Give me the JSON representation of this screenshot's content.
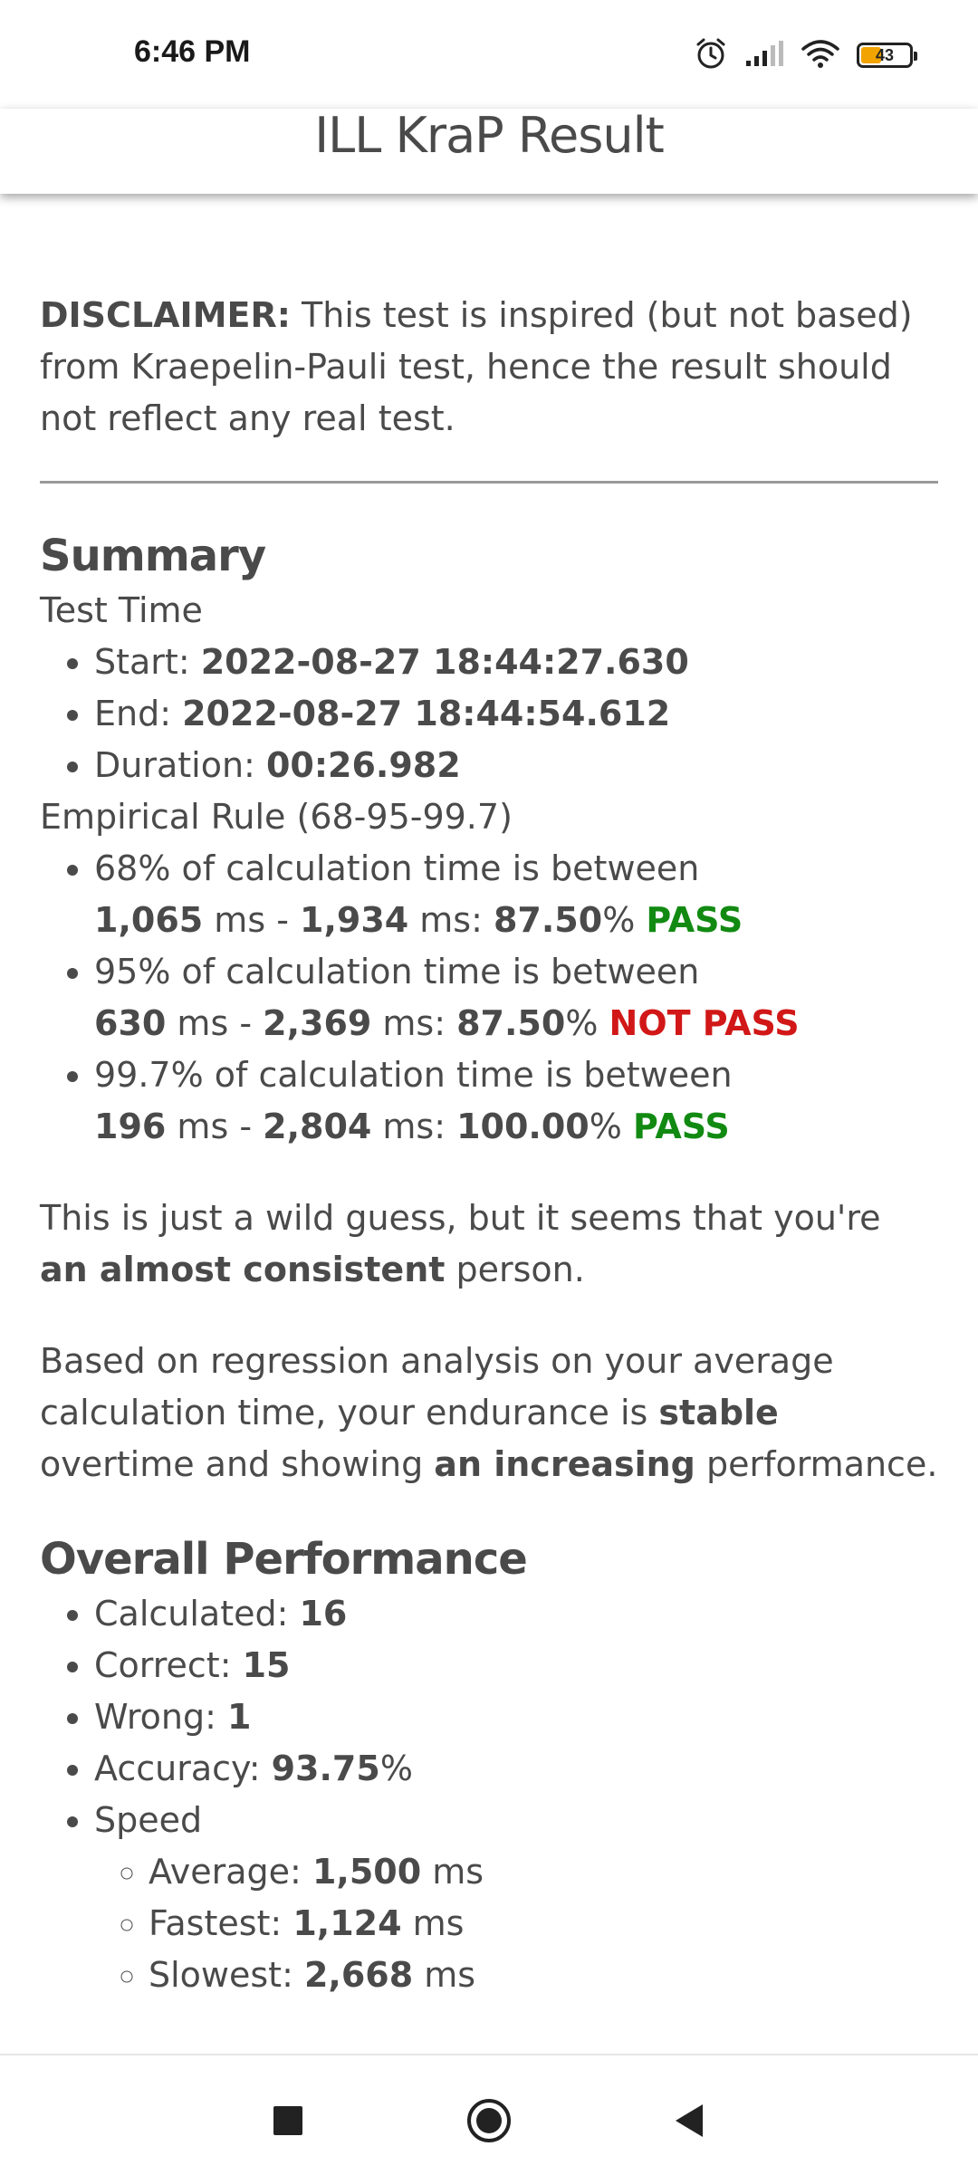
{
  "status_bar": {
    "time": "6:46 PM",
    "battery_level": "43",
    "battery_color": "#f2a300",
    "icons": [
      "alarm-icon",
      "signal-icon",
      "wifi-icon",
      "battery-icon"
    ]
  },
  "header": {
    "title": "ILL KraP Result"
  },
  "disclaimer": {
    "label": "DISCLAIMER:",
    "text": " This test is inspired (but not based) from Kraepelin-Pauli test, hence the result should not reflect any real test."
  },
  "summary": {
    "heading": "Summary",
    "test_time_label": "Test Time",
    "start_label": "Start: ",
    "start_value": "2022-08-27 18:44:27.630",
    "end_label": "End: ",
    "end_value": "2022-08-27 18:44:54.612",
    "duration_label": "Duration: ",
    "duration_value": "00:26.982",
    "empirical_label": "Empirical Rule (68-95-99.7)",
    "rules": [
      {
        "text": "68% of calculation time is between",
        "low": "1,065",
        "high": "1,934",
        "percent": "87.50",
        "result": "PASS"
      },
      {
        "text": "95% of calculation time is between",
        "low": "630",
        "high": "2,369",
        "percent": "87.50",
        "result": "NOT PASS"
      },
      {
        "text": "99.7% of calculation time is between",
        "low": "196",
        "high": "2,804",
        "percent": "100.00",
        "result": "PASS"
      }
    ],
    "unit_ms": "ms",
    "dash": " - ",
    "ms_colon": " ms: ",
    "percent_sign": "%"
  },
  "guess": {
    "prefix": "This is just a wild guess, but it seems that you're ",
    "bold": "an almost consistent",
    "suffix": " person."
  },
  "regression": {
    "prefix": "Based on regression analysis on your average calculation time, your endurance is ",
    "bold1": "stable",
    "middle": " overtime and showing ",
    "bold2": "an increasing",
    "suffix": " performance."
  },
  "overall": {
    "heading": "Overall Performance",
    "calculated_label": "Calculated: ",
    "calculated_value": "16",
    "correct_label": "Correct: ",
    "correct_value": "15",
    "wrong_label": "Wrong: ",
    "wrong_value": "1",
    "accuracy_label": "Accuracy: ",
    "accuracy_value": "93.75",
    "speed_label": "Speed",
    "average_label": "Average: ",
    "average_value": "1,500",
    "fastest_label": "Fastest: ",
    "fastest_value": "1,124",
    "slowest_label": "Slowest: ",
    "slowest_value": "2,668"
  },
  "colors": {
    "pass": "#128a12",
    "fail": "#d11717",
    "text": "#4a4a4a"
  }
}
